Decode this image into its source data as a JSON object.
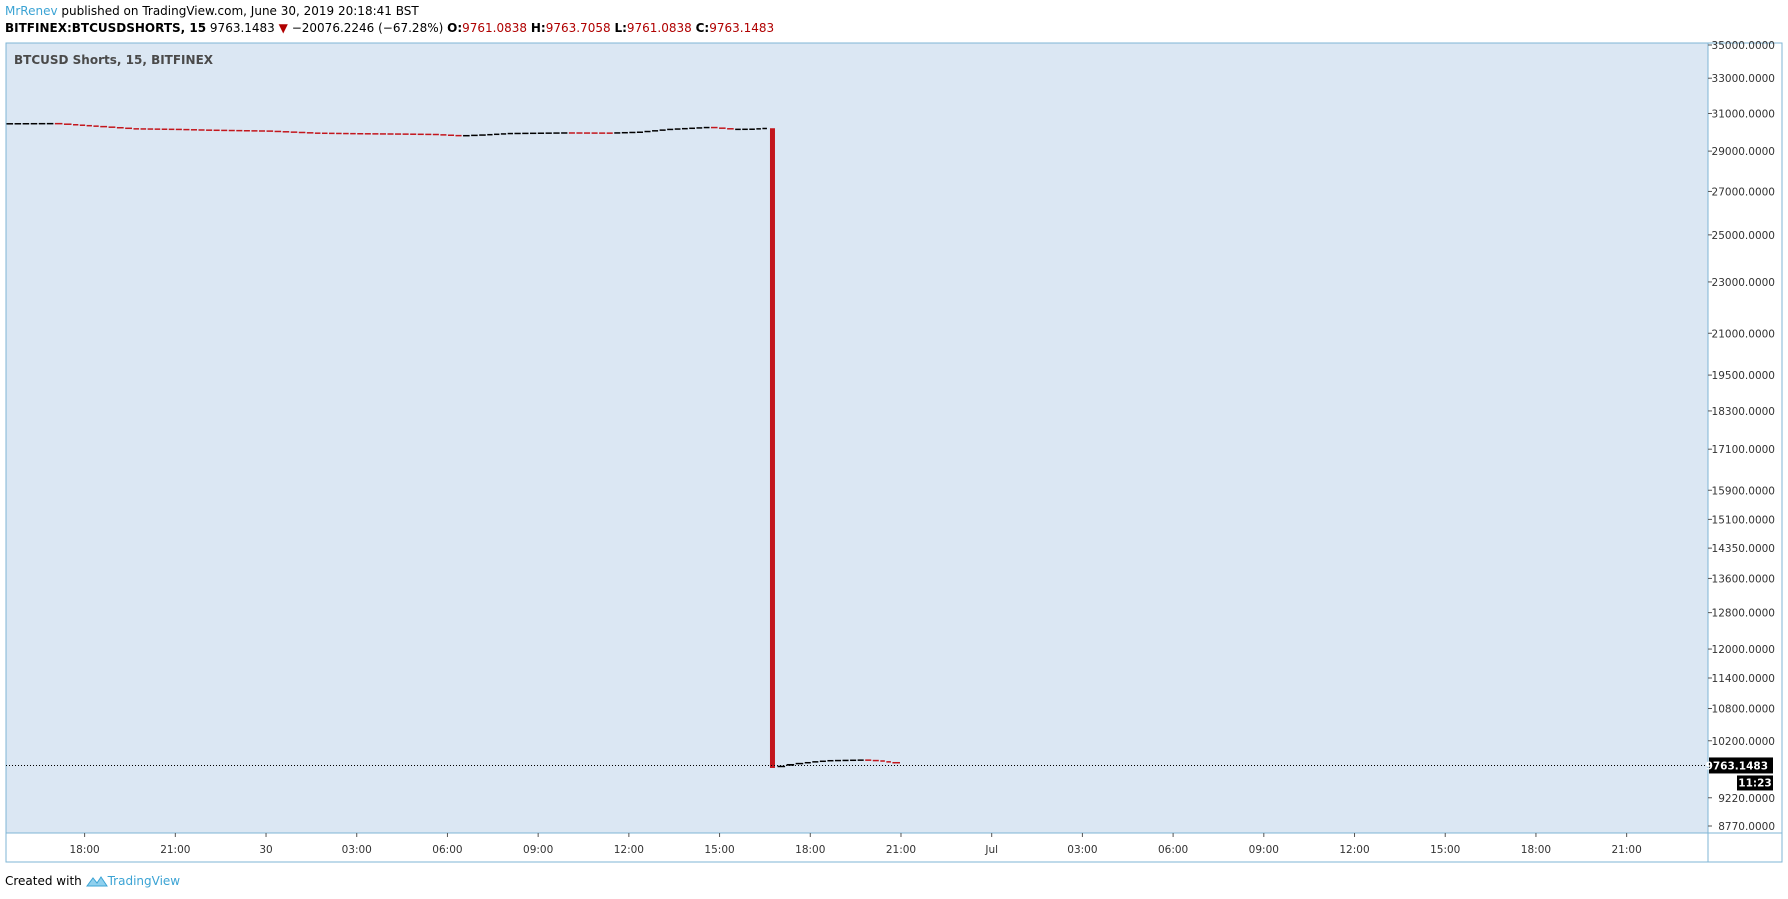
{
  "header": {
    "author": "MrRenev",
    "published": " published on TradingView.com, June 30, 2019 20:18:41 BST",
    "symbol": "BITFINEX:BTCUSDSHORTS, 15",
    "last": "9763.1483",
    "change": "−20076.2246 (−67.28%)",
    "open_label": "O:",
    "open": "9761.0838",
    "high_label": "H:",
    "high": "9763.7058",
    "low_label": "L:",
    "low": "9761.0838",
    "close_label": "C:",
    "close": "9763.1483"
  },
  "footer": {
    "created_with": "Created with",
    "brand": "TradingView"
  },
  "colors": {
    "background": "#dbe7f3",
    "border": "#7fb6d6",
    "up": "#000000",
    "down": "#c3161c",
    "accent": "#3ba3d4"
  },
  "chart_data": {
    "type": "candlestick",
    "title": "BTCUSD Shorts, 15, BITFINEX",
    "y_scale": "log",
    "ylim": [
      8770,
      35000
    ],
    "y_ticks": [
      "8770.0000",
      "9220.0000",
      "10200.0000",
      "10800.0000",
      "11400.0000",
      "12000.0000",
      "12800.0000",
      "13600.0000",
      "14350.0000",
      "15100.0000",
      "15900.0000",
      "17100.0000",
      "18300.0000",
      "19500.0000",
      "21000.0000",
      "23000.0000",
      "25000.0000",
      "27000.0000",
      "29000.0000",
      "31000.0000",
      "33000.0000",
      "35000.0000"
    ],
    "x_ticks": [
      {
        "label": "18:00",
        "h": 18
      },
      {
        "label": "21:00",
        "h": 21
      },
      {
        "label": "30",
        "h": 24
      },
      {
        "label": "03:00",
        "h": 27
      },
      {
        "label": "06:00",
        "h": 30
      },
      {
        "label": "09:00",
        "h": 33
      },
      {
        "label": "12:00",
        "h": 36
      },
      {
        "label": "15:00",
        "h": 39
      },
      {
        "label": "18:00",
        "h": 42
      },
      {
        "label": "21:00",
        "h": 45
      },
      {
        "label": "Jul",
        "h": 48
      },
      {
        "label": "03:00",
        "h": 51
      },
      {
        "label": "06:00",
        "h": 54
      },
      {
        "label": "09:00",
        "h": 57
      },
      {
        "label": "12:00",
        "h": 60
      },
      {
        "label": "15:00",
        "h": 63
      },
      {
        "label": "18:00",
        "h": 66
      },
      {
        "label": "21:00",
        "h": 69
      }
    ],
    "x_unit": "hours from June 29 00:00",
    "xlim": [
      15.4,
      70.5
    ],
    "close_path": [
      [
        15.4,
        30450
      ],
      [
        17.0,
        30460
      ],
      [
        17.6,
        30400
      ],
      [
        18.5,
        30300
      ],
      [
        19.6,
        30180
      ],
      [
        21.0,
        30150
      ],
      [
        22.0,
        30110
      ],
      [
        24.0,
        30060
      ],
      [
        25.6,
        29950
      ],
      [
        27.0,
        29920
      ],
      [
        28.5,
        29900
      ],
      [
        29.5,
        29880
      ],
      [
        30.5,
        29800
      ],
      [
        31.3,
        29850
      ],
      [
        32.2,
        29930
      ],
      [
        34.0,
        29960
      ],
      [
        35.5,
        29950
      ],
      [
        36.5,
        30000
      ],
      [
        37.5,
        30150
      ],
      [
        38.7,
        30250
      ],
      [
        39.5,
        30150
      ],
      [
        40.2,
        30160
      ],
      [
        40.6,
        30200
      ]
    ],
    "big_candle": {
      "x": 40.75,
      "open": 30200,
      "close": 9720,
      "low": 9720
    },
    "after_path": [
      [
        40.9,
        9730
      ],
      [
        41.2,
        9750
      ],
      [
        41.5,
        9780
      ],
      [
        41.8,
        9800
      ],
      [
        42.3,
        9830
      ],
      [
        42.8,
        9850
      ],
      [
        43.3,
        9855
      ],
      [
        43.8,
        9860
      ],
      [
        44.3,
        9845
      ],
      [
        44.7,
        9815
      ],
      [
        45.0,
        9790
      ]
    ],
    "last_price": {
      "value": 9763.1483,
      "label": "9763.1483",
      "countdown": "11:23"
    }
  }
}
